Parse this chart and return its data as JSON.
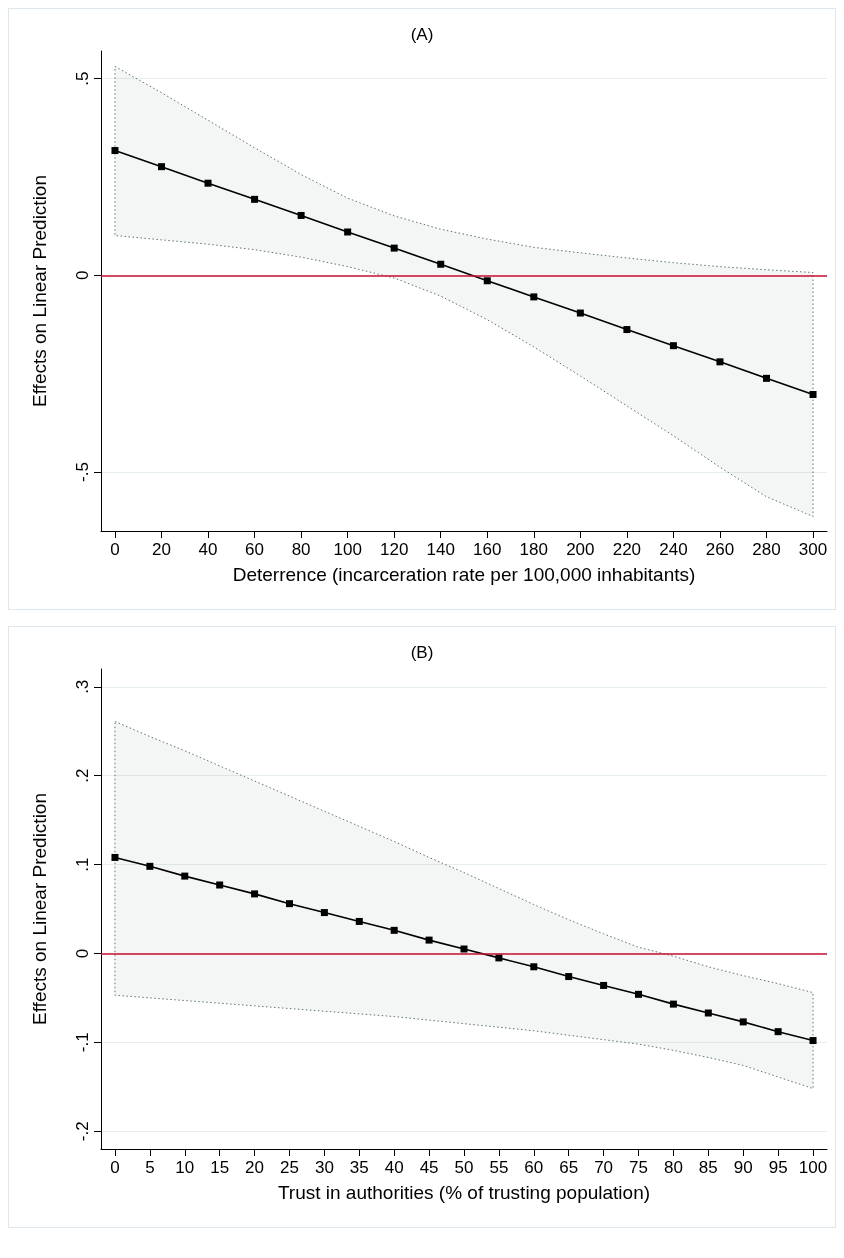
{
  "chart_data": [
    {
      "type": "line",
      "title": "(A)",
      "xlabel": "Deterrence (incarceration rate per 100,000 inhabitants)",
      "ylabel": "Effects on Linear Prediction",
      "x": [
        0,
        20,
        40,
        60,
        80,
        100,
        120,
        140,
        160,
        180,
        200,
        220,
        240,
        260,
        280,
        300
      ],
      "series": [
        {
          "color": "#000000",
          "values": [
            0.317,
            0.276,
            0.234,
            0.193,
            0.152,
            0.11,
            0.069,
            0.028,
            -0.014,
            -0.055,
            -0.096,
            -0.138,
            -0.179,
            -0.22,
            -0.262,
            -0.303
          ],
          "upper": [
            0.531,
            0.464,
            0.394,
            0.324,
            0.256,
            0.196,
            0.151,
            0.117,
            0.092,
            0.071,
            0.057,
            0.044,
            0.032,
            0.022,
            0.014,
            0.007
          ],
          "lower": [
            0.101,
            0.09,
            0.079,
            0.065,
            0.046,
            0.022,
            -0.007,
            -0.053,
            -0.113,
            -0.182,
            -0.256,
            -0.332,
            -0.408,
            -0.488,
            -0.563,
            -0.613
          ]
        }
      ],
      "xlim": [
        -6,
        306
      ],
      "xticks": [
        0,
        20,
        40,
        60,
        80,
        100,
        120,
        140,
        160,
        180,
        200,
        220,
        240,
        260,
        280,
        300
      ],
      "ylim": [
        -0.65,
        0.57
      ],
      "yticks": [
        {
          "value": -0.5,
          "label": "-.5"
        },
        0,
        {
          "value": 0.5,
          "label": ".5"
        }
      ],
      "ref_lines": [
        {
          "axis": "y",
          "value": 0,
          "color": "#c8102e"
        }
      ],
      "grid": "y",
      "marker": "square",
      "line_style": "solid"
    },
    {
      "type": "line",
      "title": "(B)",
      "xlabel": "Trust in authorities (% of trusting population)",
      "ylabel": "Effects on Linear Prediction",
      "x": [
        0,
        5,
        10,
        15,
        20,
        25,
        30,
        35,
        40,
        45,
        50,
        55,
        60,
        65,
        70,
        75,
        80,
        85,
        90,
        95,
        100
      ],
      "series": [
        {
          "color": "#000000",
          "values": [
            0.108,
            0.098,
            0.087,
            0.077,
            0.067,
            0.056,
            0.046,
            0.036,
            0.026,
            0.015,
            0.005,
            -0.005,
            -0.015,
            -0.026,
            -0.036,
            -0.046,
            -0.057,
            -0.067,
            -0.077,
            -0.088,
            -0.098
          ],
          "upper": [
            0.261,
            0.244,
            0.228,
            0.211,
            0.194,
            0.177,
            0.16,
            0.143,
            0.126,
            0.108,
            0.091,
            0.073,
            0.055,
            0.038,
            0.022,
            0.007,
            -0.003,
            -0.015,
            -0.025,
            -0.034,
            -0.044
          ],
          "lower": [
            -0.047,
            -0.05,
            -0.053,
            -0.056,
            -0.059,
            -0.062,
            -0.065,
            -0.068,
            -0.071,
            -0.075,
            -0.079,
            -0.083,
            -0.087,
            -0.092,
            -0.097,
            -0.102,
            -0.109,
            -0.117,
            -0.126,
            -0.139,
            -0.152
          ]
        }
      ],
      "xlim": [
        -2,
        102
      ],
      "xticks": [
        0,
        5,
        10,
        15,
        20,
        25,
        30,
        35,
        40,
        45,
        50,
        55,
        60,
        65,
        70,
        75,
        80,
        85,
        90,
        95,
        100
      ],
      "ylim": [
        -0.22,
        0.32
      ],
      "yticks": [
        {
          "value": -0.2,
          "label": "-.2"
        },
        {
          "value": -0.1,
          "label": "-.1"
        },
        0,
        {
          "value": 0.1,
          "label": ".1"
        },
        {
          "value": 0.2,
          "label": ".2"
        },
        {
          "value": 0.3,
          "label": ".3"
        }
      ],
      "ref_lines": [
        {
          "axis": "y",
          "value": 0,
          "color": "#c8102e"
        }
      ],
      "grid": "y",
      "marker": "square",
      "line_style": "solid"
    }
  ]
}
